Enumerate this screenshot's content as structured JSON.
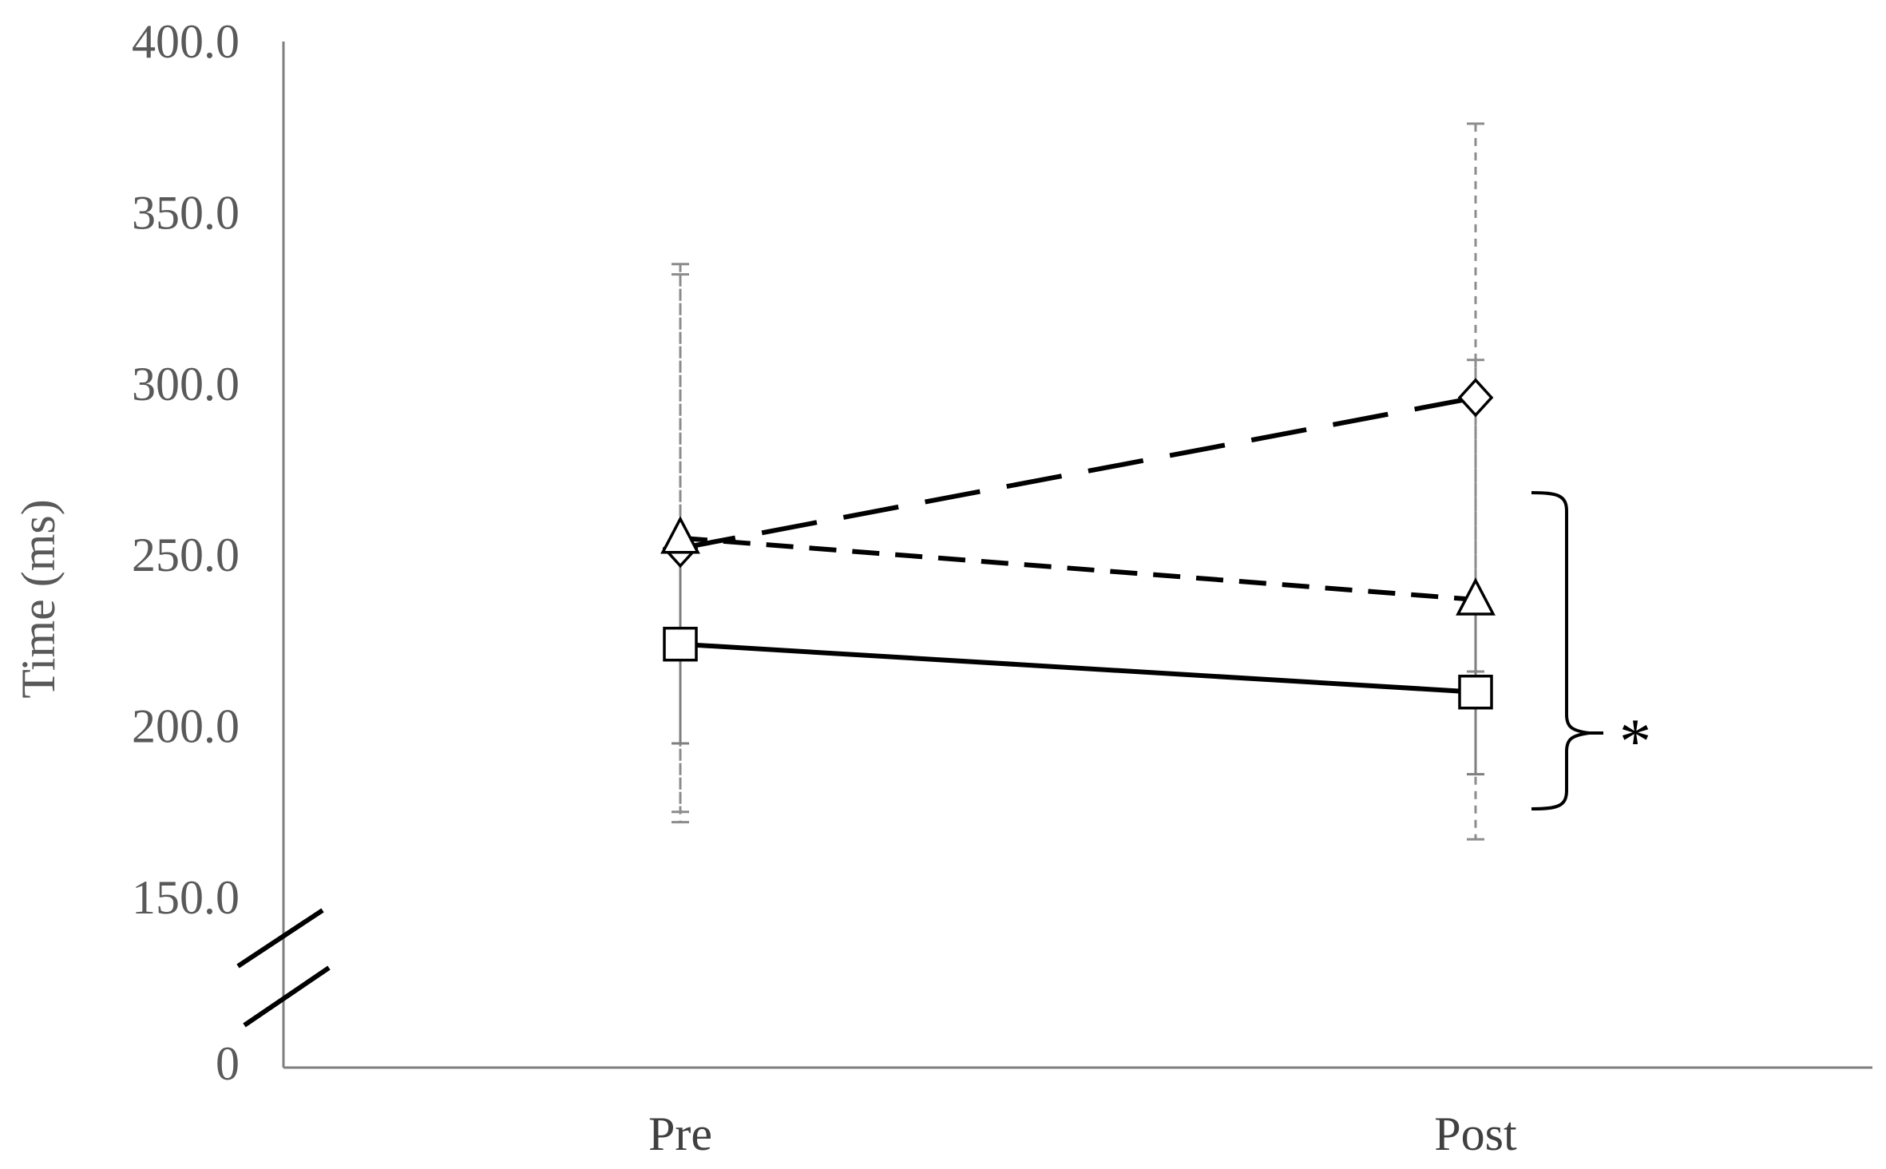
{
  "chart_data": {
    "type": "line",
    "title": "",
    "xlabel": "",
    "ylabel": "Time (ms)",
    "categories": [
      "Pre",
      "Post"
    ],
    "y_ticks": [
      "0",
      "150.0",
      "200.0",
      "250.0",
      "300.0",
      "350.0",
      "400.0"
    ],
    "ylim": [
      150,
      400
    ],
    "axis_break": true,
    "grid": false,
    "legend": "none",
    "series": [
      {
        "values": [
          252,
          296
        ],
        "error": [
          80,
          80
        ],
        "marker": "diamond",
        "line_style": "long-dash"
      },
      {
        "values": [
          255,
          237
        ],
        "error": [
          80,
          70
        ],
        "marker": "triangle",
        "line_style": "short-dash"
      },
      {
        "values": [
          224,
          210
        ],
        "error": [
          29,
          24
        ],
        "marker": "square",
        "line_style": "solid"
      }
    ],
    "annotation": "*"
  }
}
